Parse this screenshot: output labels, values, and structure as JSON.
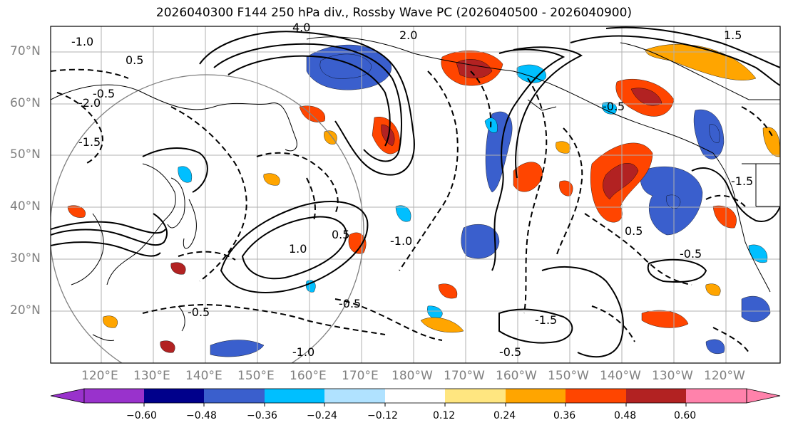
{
  "title": "2026040300 F144 250 hPa div., Rossby Wave PC (2026040500 - 2026040900)",
  "colors": {
    "bins": [
      "#9932cc",
      "#00008b",
      "#3a5fcd",
      "#00bfff",
      "#b0e2ff",
      "#ffffff",
      "#ffe680",
      "#ffa500",
      "#ff4500",
      "#b22222",
      "#ff82ab"
    ],
    "grid": "#b0b0b0",
    "coast": "#000000",
    "axis_label": "#808080"
  },
  "lat_labels": [
    "70°N",
    "60°N",
    "50°N",
    "40°N",
    "30°N",
    "20°N"
  ],
  "lon_labels": [
    "120°E",
    "130°E",
    "140°E",
    "150°E",
    "160°E",
    "170°E",
    "180°W",
    "170°W",
    "160°W",
    "150°W",
    "140°W",
    "130°W",
    "120°W"
  ],
  "colorbar": {
    "ticks": [
      "−0.60",
      "−0.48",
      "−0.36",
      "−0.24",
      "−0.12",
      "0.12",
      "0.24",
      "0.36",
      "0.48",
      "0.60"
    ]
  },
  "contour_labels": [
    "-1.0",
    "0.5",
    "-0.5",
    "1.0",
    "-1.5",
    "1.5",
    "4.0",
    "-2.0",
    "2.0"
  ]
}
